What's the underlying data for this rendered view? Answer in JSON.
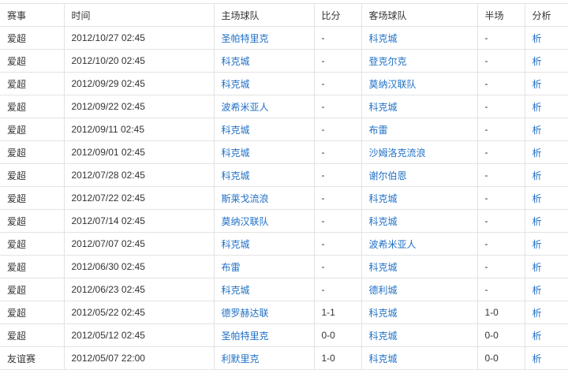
{
  "headers": [
    "赛事",
    "时间",
    "主场球队",
    "比分",
    "客场球队",
    "半场",
    "分析"
  ],
  "rows": [
    [
      "爱超",
      "2012/10/27 02:45",
      "圣帕特里克",
      "-",
      "科克城",
      "-",
      "析"
    ],
    [
      "爱超",
      "2012/10/20 02:45",
      "科克城",
      "-",
      "登克尔克",
      "-",
      "析"
    ],
    [
      "爱超",
      "2012/09/29 02:45",
      "科克城",
      "-",
      "莫纳汉联队",
      "-",
      "析"
    ],
    [
      "爱超",
      "2012/09/22 02:45",
      "波希米亚人",
      "-",
      "科克城",
      "-",
      "析"
    ],
    [
      "爱超",
      "2012/09/11 02:45",
      "科克城",
      "-",
      "布雷",
      "-",
      "析"
    ],
    [
      "爱超",
      "2012/09/01 02:45",
      "科克城",
      "-",
      "沙姆洛克流浪",
      "-",
      "析"
    ],
    [
      "爱超",
      "2012/07/28 02:45",
      "科克城",
      "-",
      "谢尔伯恩",
      "-",
      "析"
    ],
    [
      "爱超",
      "2012/07/22 02:45",
      "斯莱戈流浪",
      "-",
      "科克城",
      "-",
      "析"
    ],
    [
      "爱超",
      "2012/07/14 02:45",
      "莫纳汉联队",
      "-",
      "科克城",
      "-",
      "析"
    ],
    [
      "爱超",
      "2012/07/07 02:45",
      "科克城",
      "-",
      "波希米亚人",
      "-",
      "析"
    ],
    [
      "爱超",
      "2012/06/30 02:45",
      "布雷",
      "-",
      "科克城",
      "-",
      "析"
    ],
    [
      "爱超",
      "2012/06/23 02:45",
      "科克城",
      "-",
      "德利城",
      "-",
      "析"
    ],
    [
      "爱超",
      "2012/05/22 02:45",
      "德罗赫达联",
      "1-1",
      "科克城",
      "1-0",
      "析"
    ],
    [
      "爱超",
      "2012/05/12 02:45",
      "圣帕特里克",
      "0-0",
      "科克城",
      "0-0",
      "析"
    ],
    [
      "友谊赛",
      "2012/05/07 22:00",
      "利默里克",
      "1-0",
      "科克城",
      "0-0",
      "析"
    ]
  ],
  "colors": {
    "link": "#1f6fc5",
    "text": "#333333",
    "border": "#e3e3e3"
  }
}
